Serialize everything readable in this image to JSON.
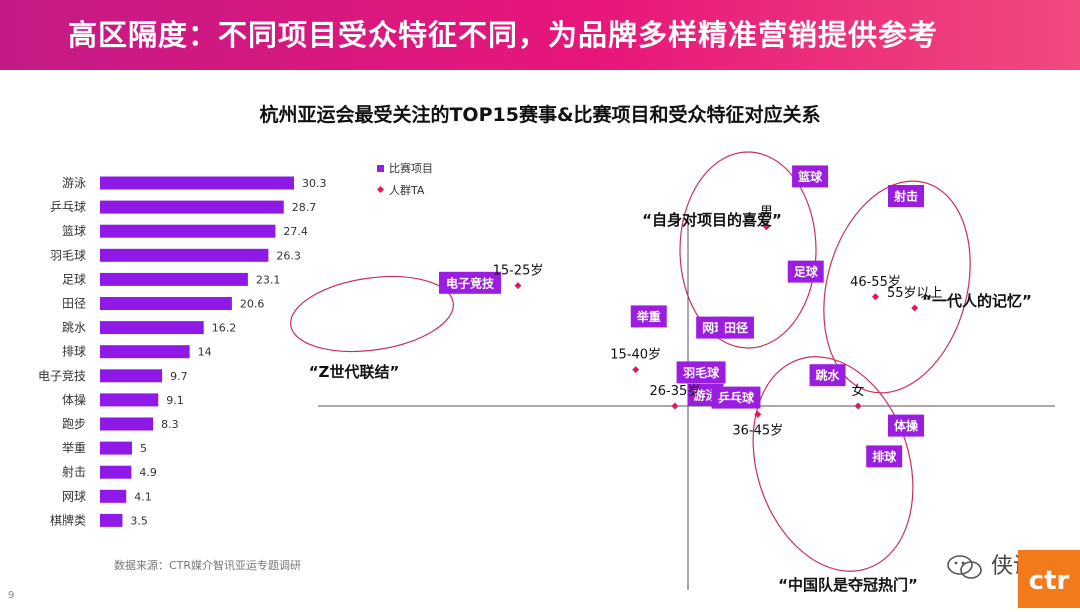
{
  "banner_title": "高区隔度：不同项目受众特征不同，为品牌多样精准营销提供参考",
  "chart_title": "杭州亚运会最受关注的TOP15赛事&比赛项目和受众特征对应关系",
  "source": "数据来源：CTR媒介智讯亚运专题调研",
  "page_number": "9",
  "watermark": "侠说",
  "logo_text": "ctr",
  "colors": {
    "bar": "#8f19e6",
    "pill": "#9b1ee0",
    "ta_marker": "#e3185f",
    "ellipse": "#c8305c",
    "banner": "#e8167a"
  },
  "chart_data": [
    {
      "type": "bar",
      "orientation": "horizontal",
      "categories": [
        "游泳",
        "乒乓球",
        "篮球",
        "羽毛球",
        "足球",
        "田径",
        "跳水",
        "排球",
        "电子竞技",
        "体操",
        "跑步",
        "举重",
        "射击",
        "网球",
        "棋牌类"
      ],
      "values": [
        30.3,
        28.7,
        27.4,
        26.3,
        23.1,
        20.6,
        16.2,
        14,
        9.7,
        9.1,
        8.3,
        5,
        4.9,
        4.1,
        3.5
      ],
      "value_labels": [
        "30.3",
        "28.7",
        "27.4",
        "26.3",
        "23.1",
        "20.6",
        "16.2",
        "14",
        "9.7",
        "9.1",
        "8.3",
        "5",
        "4.9",
        "4.1",
        "3.5"
      ],
      "xlim": [
        0,
        30.3
      ]
    },
    {
      "type": "scatter",
      "axes": "perpendicular map, no tick labels",
      "legend": [
        {
          "name": "比赛项目",
          "marker": "square"
        },
        {
          "name": "人群TA",
          "marker": "diamond"
        }
      ],
      "sports": [
        {
          "label": "篮球",
          "x": 0.78,
          "y": 0.82
        },
        {
          "label": "足球",
          "x": 0.77,
          "y": 0.48
        },
        {
          "label": "射击",
          "x": 1.0,
          "y": 0.75
        },
        {
          "label": "电子竞技",
          "x": 0.0,
          "y": 0.44
        },
        {
          "label": "举重",
          "x": 0.41,
          "y": 0.32
        },
        {
          "label": "网球",
          "x": 0.56,
          "y": 0.28
        },
        {
          "label": "田径",
          "x": 0.61,
          "y": 0.28
        },
        {
          "label": "羽毛球",
          "x": 0.53,
          "y": 0.12
        },
        {
          "label": "游泳",
          "x": 0.54,
          "y": 0.04
        },
        {
          "label": "乒乓球",
          "x": 0.61,
          "y": 0.03
        },
        {
          "label": "跳水",
          "x": 0.82,
          "y": 0.11
        },
        {
          "label": "体操",
          "x": 1.0,
          "y": -0.07
        },
        {
          "label": "排球",
          "x": 0.95,
          "y": -0.18
        }
      ],
      "audiences": [
        {
          "label": "男",
          "x": 0.68,
          "y": 0.64
        },
        {
          "label": "15-25岁",
          "x": 0.11,
          "y": 0.43
        },
        {
          "label": "15-40岁",
          "x": 0.38,
          "y": 0.13
        },
        {
          "label": "26-35岁",
          "x": 0.47,
          "y": 0.0
        },
        {
          "label": "36-45岁",
          "x": 0.66,
          "y": -0.03
        },
        {
          "label": "女",
          "x": 0.89,
          "y": 0.0
        },
        {
          "label": "46-55岁",
          "x": 0.93,
          "y": 0.39
        },
        {
          "label": "55岁以上",
          "x": 1.02,
          "y": 0.35
        }
      ],
      "clusters": [
        {
          "quote": "“自身对项目的喜爱”"
        },
        {
          "quote": "“一代人的记忆”"
        },
        {
          "quote": "“Z世代联结”"
        },
        {
          "quote": "“中国队是夺冠热门”"
        }
      ]
    }
  ]
}
